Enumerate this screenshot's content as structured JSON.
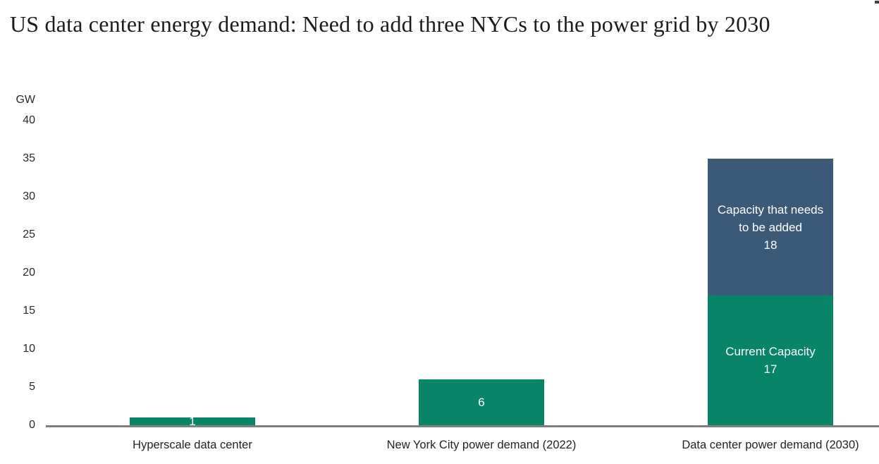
{
  "title": "US data center energy demand: Need to add three NYCs to the power grid by 2030",
  "colors": {
    "bar_green": "#088468",
    "bar_blue": "#3A5A78",
    "axis_line": "#7F7F7F",
    "tick_text": "#2C2A29",
    "category_text": "#252423",
    "label_on_bar": "#FFFFFF",
    "title_text": "#1C1C1C"
  },
  "chart_data": {
    "type": "bar",
    "stacked": true,
    "title": "US data center energy demand: Need to add three NYCs to the power grid by 2030",
    "xlabel": "",
    "ylabel": "GW",
    "ylim": [
      0,
      40
    ],
    "yticks": [
      0,
      5,
      10,
      15,
      20,
      25,
      30,
      35,
      40
    ],
    "grid": false,
    "legend_position": "none",
    "categories": [
      "Hyperscale data center",
      "New York City power demand (2022)",
      "Data center power demand (2030)"
    ],
    "series": [
      {
        "name": "Current Capacity",
        "color": "#088468",
        "values": [
          1,
          6,
          17
        ]
      },
      {
        "name": "Capacity that needs to be added",
        "color": "#3A5A78",
        "values": [
          0,
          0,
          18
        ]
      }
    ],
    "bars": [
      {
        "category": "Hyperscale data center",
        "segments": [
          {
            "name": "",
            "show_name": false,
            "value": 1,
            "value_label": "1",
            "color_key": "bar_green"
          }
        ]
      },
      {
        "category": "New York City power demand (2022)",
        "segments": [
          {
            "name": "",
            "show_name": false,
            "value": 6,
            "value_label": "6",
            "color_key": "bar_green"
          }
        ]
      },
      {
        "category": "Data center power demand (2030)",
        "segments": [
          {
            "name": "Current Capacity",
            "show_name": true,
            "value": 17,
            "value_label": "17",
            "color_key": "bar_green"
          },
          {
            "name": "Capacity that needs to be added",
            "show_name": true,
            "value": 18,
            "value_label": "18",
            "color_key": "bar_blue"
          }
        ]
      }
    ]
  }
}
